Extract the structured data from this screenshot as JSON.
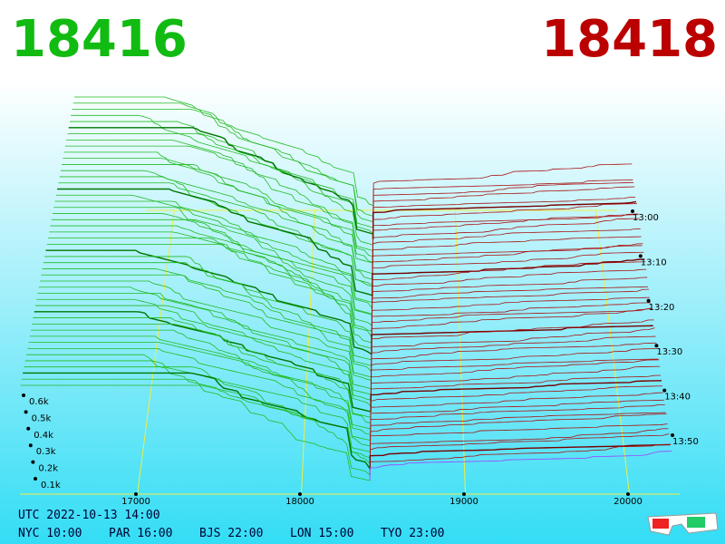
{
  "header": {
    "bid": "18416",
    "ask": "18418"
  },
  "price_axis": {
    "labels": [
      "17000",
      "18000",
      "19000",
      "20000"
    ]
  },
  "depth_axis": {
    "labels": [
      "0.1k",
      "0.2k",
      "0.3k",
      "0.4k",
      "0.5k",
      "0.6k"
    ]
  },
  "time_axis": {
    "labels": [
      "13:00",
      "13:10",
      "13:20",
      "13:30",
      "13:40",
      "13:50"
    ]
  },
  "footer": {
    "utc": "UTC 2022-10-13 14:00",
    "zones": [
      "NYC 10:00",
      "PAR 16:00",
      "BJS 22:00",
      "LON 15:00",
      "TYO 23:00"
    ]
  }
}
